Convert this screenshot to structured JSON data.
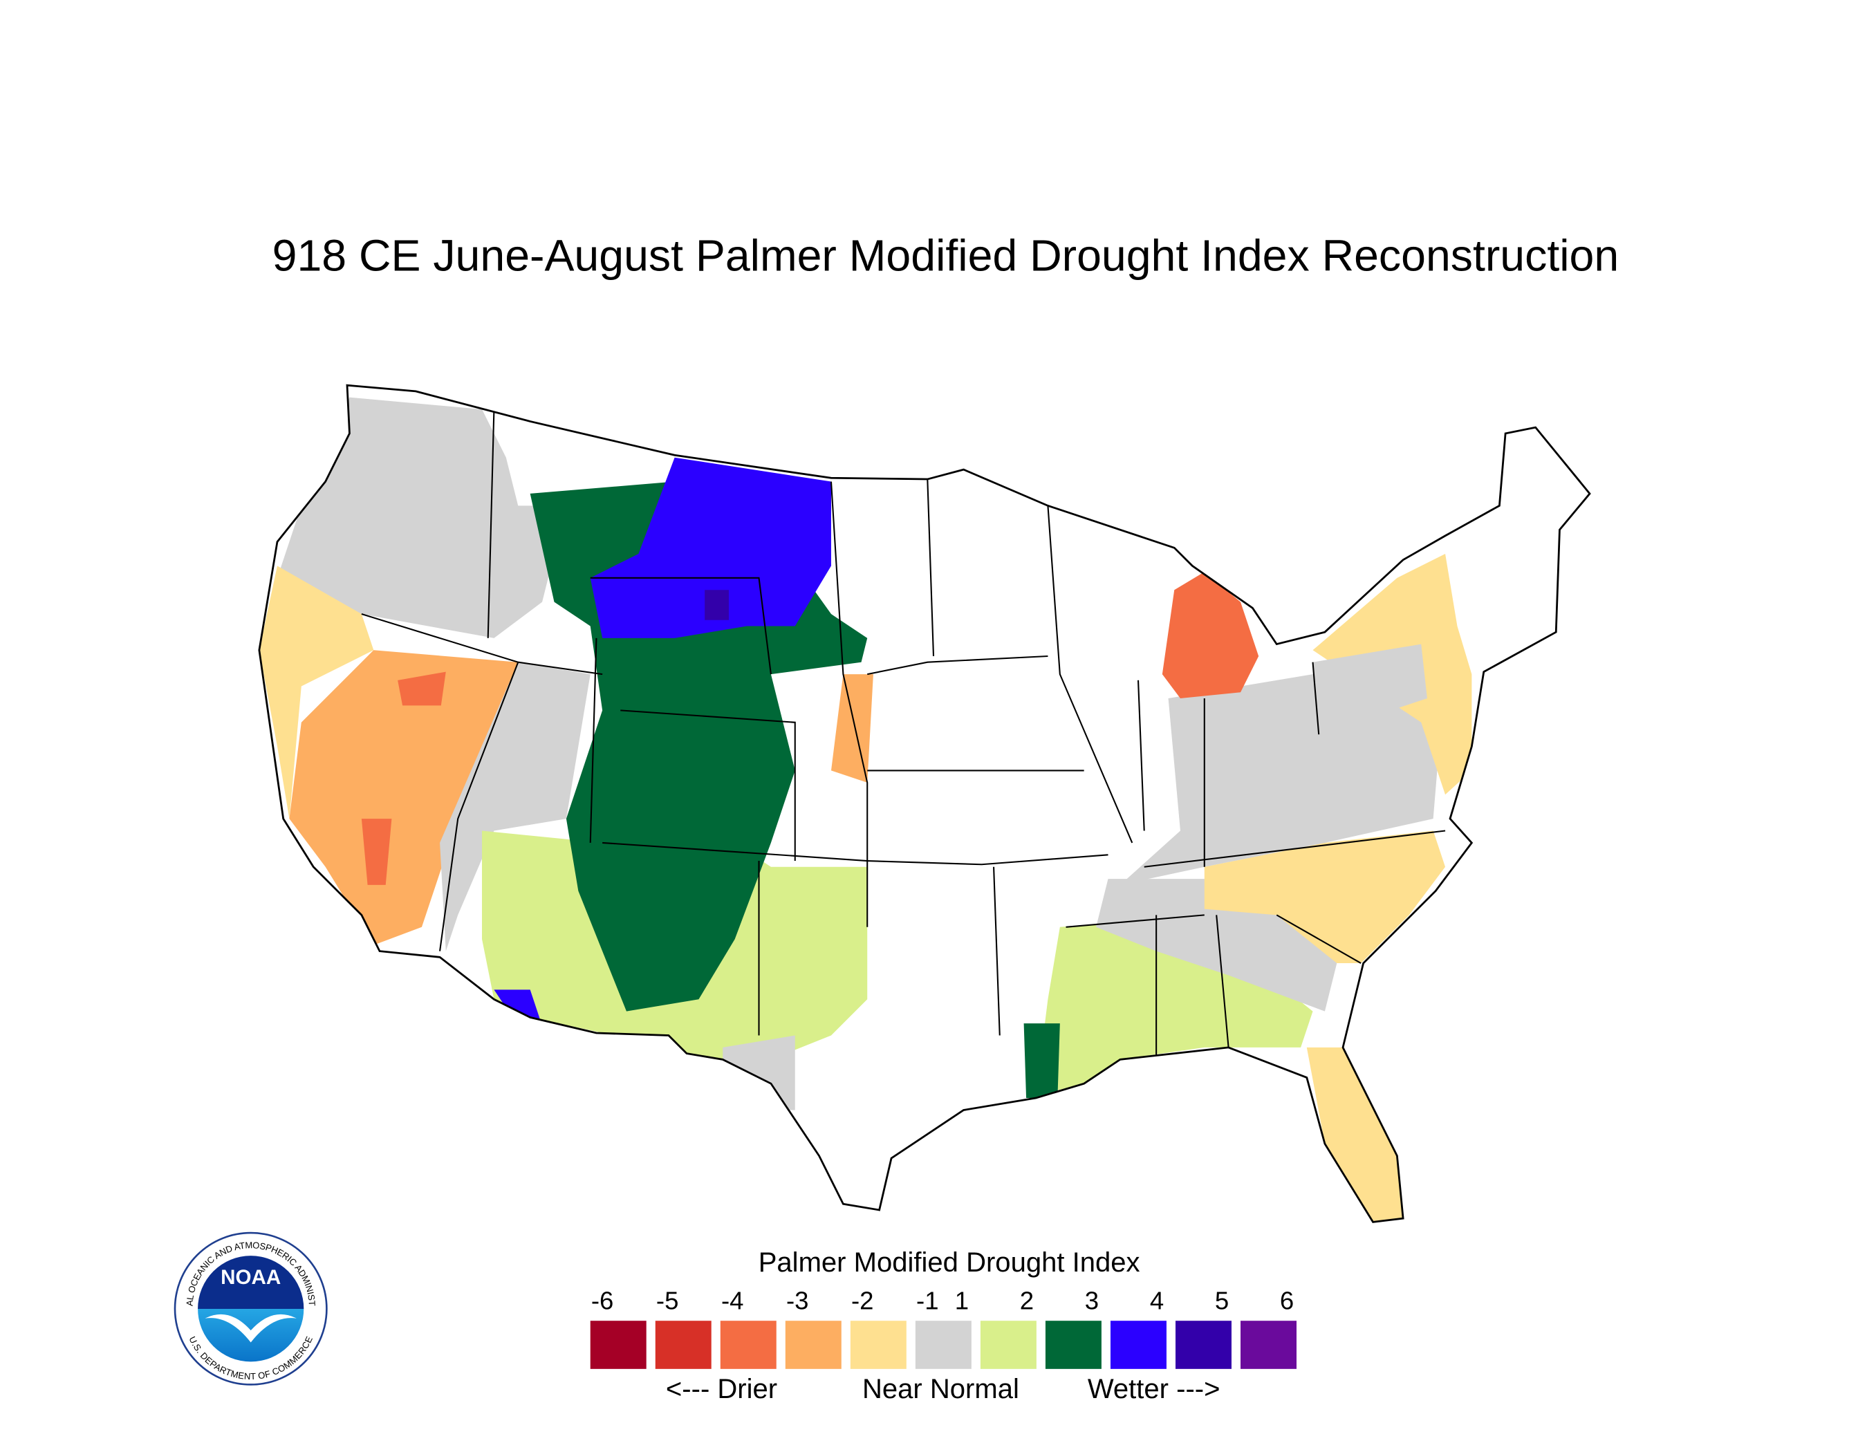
{
  "chart_data": {
    "type": "map",
    "title": "918 CE  June-August  Palmer Modified Drought Index Reconstruction",
    "values": [
      0,
      -1.5,
      -2.5,
      -3.5,
      -3.5,
      0,
      1.5,
      2.5,
      3.5,
      4.5,
      3.5,
      -2.5,
      0,
      1.5,
      2.5,
      0,
      -1.5,
      0,
      -1.5,
      -3.5,
      -1.5,
      0
    ],
    "legend": {
      "title": "Palmer Modified Drought Index",
      "bins": [
        -6,
        -5,
        -4,
        -3,
        -2,
        -1,
        1,
        2,
        3,
        4,
        5,
        6
      ],
      "colors": [
        "#a50026",
        "#d73027",
        "#f46d43",
        "#fdae61",
        "#fee090",
        "#d3d3d3",
        "#d9ef8b",
        "#006837",
        "#2b00ff",
        "#3300aa",
        "#6a0a9c"
      ],
      "notes": [
        "<--- Drier",
        "Near Normal",
        "Wetter --->"
      ]
    },
    "logo": {
      "name": "NOAA",
      "ring_top": "NATIONAL OCEANIC AND ATMOSPHERIC ADMINISTRATION",
      "ring_bottom": "U.S. DEPARTMENT OF COMMERCE"
    }
  }
}
